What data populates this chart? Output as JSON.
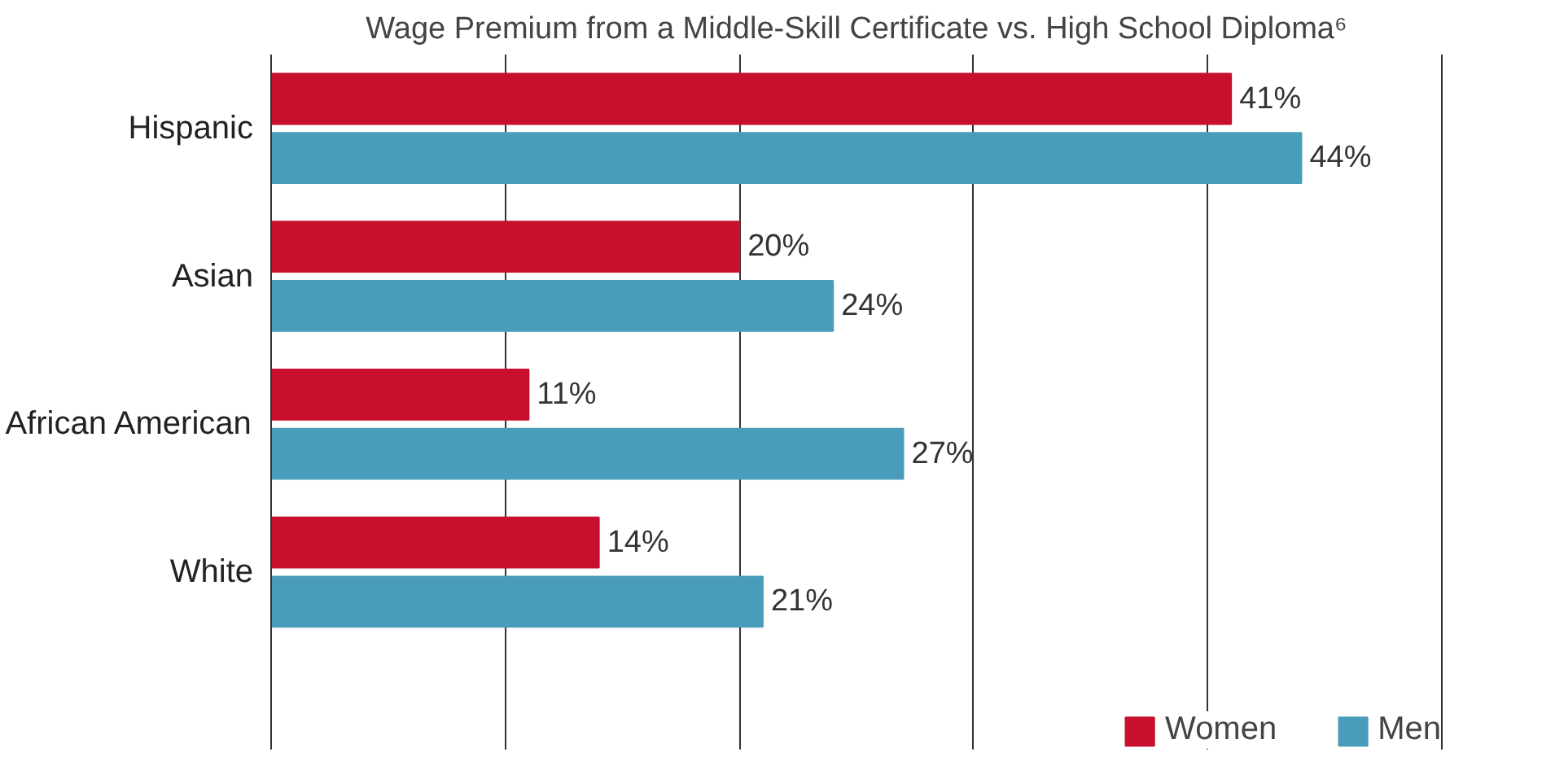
{
  "chart_data": {
    "type": "bar",
    "orientation": "horizontal",
    "title": "Wage Premium from a Middle-Skill Certificate vs. High School Diploma⁶",
    "categories": [
      "Hispanic",
      "Asian",
      "African American",
      "White"
    ],
    "series": [
      {
        "name": "Women",
        "color": "#c8102e",
        "values": [
          41,
          20,
          11,
          14
        ],
        "value_labels": [
          "41%",
          "20%",
          "11%",
          "14%"
        ]
      },
      {
        "name": "Men",
        "color": "#4a9dba",
        "values": [
          44,
          24,
          27,
          21
        ],
        "value_labels": [
          "44%",
          "24%",
          "27%",
          "21%"
        ]
      }
    ],
    "xlim": [
      0,
      50
    ],
    "xticks": [
      {
        "value": 0,
        "label": null
      },
      {
        "value": 10,
        "label": null
      },
      {
        "value": 20,
        "label": null
      },
      {
        "value": 30,
        "label": null
      },
      {
        "value": 40,
        "label": null
      },
      {
        "value": 50,
        "label": null
      }
    ],
    "tick_labels": "y",
    "grid": "x",
    "legend": "bottom right"
  }
}
